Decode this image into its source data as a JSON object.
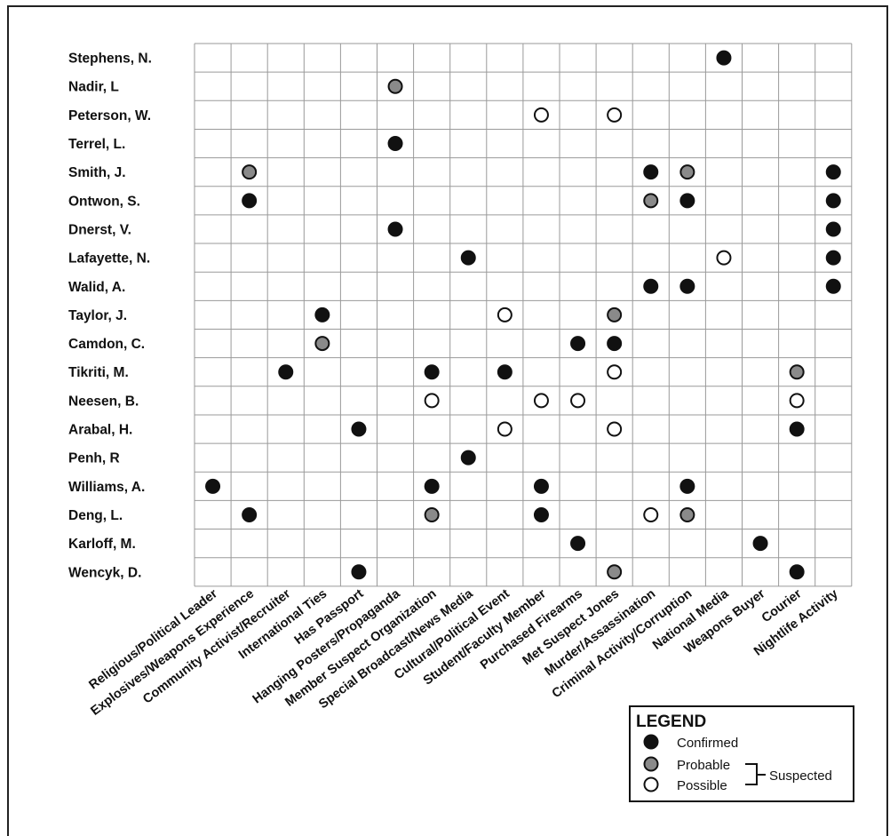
{
  "chart_data": {
    "type": "table",
    "rows": [
      "Stephens, N.",
      "Nadir, L",
      "Peterson, W.",
      "Terrel, L.",
      "Smith, J.",
      "Ontwon, S.",
      "Dnerst, V.",
      "Lafayette, N.",
      "Walid, A.",
      "Taylor, J.",
      "Camdon, C.",
      "Tikriti, M.",
      "Neesen, B.",
      "Arabal, H.",
      "Penh, R",
      "Williams, A.",
      "Deng, L.",
      "Karloff, M.",
      "Wencyk, D."
    ],
    "columns": [
      "Religious/Political Leader",
      "Explosives/Weapons Experience",
      "Community Activist/Recruiter",
      "International Ties",
      "Has Passport",
      "Hanging Posters/Propaganda",
      "Member Suspect Organization",
      "Special Broadcast/News Media",
      "Cultural/Political Event",
      "Student/Faculty Member",
      "Purchased Firearms",
      "Met Suspect Jones",
      "Murder/Assassination",
      "Criminal Activity/Corruption",
      "National Media",
      "Weapons Buyer",
      "Courier",
      "Nightlife Activity"
    ],
    "marks": [
      {
        "row": "Stephens, N.",
        "column": "National Media",
        "status": "confirmed"
      },
      {
        "row": "Nadir, L",
        "column": "Hanging Posters/Propaganda",
        "status": "probable"
      },
      {
        "row": "Peterson, W.",
        "column": "Student/Faculty Member",
        "status": "possible"
      },
      {
        "row": "Peterson, W.",
        "column": "Met Suspect Jones",
        "status": "possible"
      },
      {
        "row": "Terrel, L.",
        "column": "Hanging Posters/Propaganda",
        "status": "confirmed"
      },
      {
        "row": "Smith, J.",
        "column": "Explosives/Weapons Experience",
        "status": "probable"
      },
      {
        "row": "Smith, J.",
        "column": "Murder/Assassination",
        "status": "confirmed"
      },
      {
        "row": "Smith, J.",
        "column": "Criminal Activity/Corruption",
        "status": "probable"
      },
      {
        "row": "Smith, J.",
        "column": "Nightlife Activity",
        "status": "confirmed"
      },
      {
        "row": "Ontwon, S.",
        "column": "Explosives/Weapons Experience",
        "status": "confirmed"
      },
      {
        "row": "Ontwon, S.",
        "column": "Murder/Assassination",
        "status": "probable"
      },
      {
        "row": "Ontwon, S.",
        "column": "Criminal Activity/Corruption",
        "status": "confirmed"
      },
      {
        "row": "Ontwon, S.",
        "column": "Nightlife Activity",
        "status": "confirmed"
      },
      {
        "row": "Dnerst, V.",
        "column": "Hanging Posters/Propaganda",
        "status": "confirmed"
      },
      {
        "row": "Dnerst, V.",
        "column": "Nightlife Activity",
        "status": "confirmed"
      },
      {
        "row": "Lafayette, N.",
        "column": "Special Broadcast/News Media",
        "status": "confirmed"
      },
      {
        "row": "Lafayette, N.",
        "column": "National Media",
        "status": "possible"
      },
      {
        "row": "Lafayette, N.",
        "column": "Nightlife Activity",
        "status": "confirmed"
      },
      {
        "row": "Walid, A.",
        "column": "Murder/Assassination",
        "status": "confirmed"
      },
      {
        "row": "Walid, A.",
        "column": "Criminal Activity/Corruption",
        "status": "confirmed"
      },
      {
        "row": "Walid, A.",
        "column": "Nightlife Activity",
        "status": "confirmed"
      },
      {
        "row": "Taylor, J.",
        "column": "International Ties",
        "status": "confirmed"
      },
      {
        "row": "Taylor, J.",
        "column": "Cultural/Political Event",
        "status": "possible"
      },
      {
        "row": "Taylor, J.",
        "column": "Met Suspect Jones",
        "status": "probable"
      },
      {
        "row": "Camdon, C.",
        "column": "International Ties",
        "status": "probable"
      },
      {
        "row": "Camdon, C.",
        "column": "Purchased Firearms",
        "status": "confirmed"
      },
      {
        "row": "Camdon, C.",
        "column": "Met Suspect Jones",
        "status": "confirmed"
      },
      {
        "row": "Tikriti, M.",
        "column": "Community Activist/Recruiter",
        "status": "confirmed"
      },
      {
        "row": "Tikriti, M.",
        "column": "Member Suspect Organization",
        "status": "confirmed"
      },
      {
        "row": "Tikriti, M.",
        "column": "Cultural/Political Event",
        "status": "confirmed"
      },
      {
        "row": "Tikriti, M.",
        "column": "Met Suspect Jones",
        "status": "possible"
      },
      {
        "row": "Tikriti, M.",
        "column": "Courier",
        "status": "probable"
      },
      {
        "row": "Neesen, B.",
        "column": "Member Suspect Organization",
        "status": "possible"
      },
      {
        "row": "Neesen, B.",
        "column": "Student/Faculty Member",
        "status": "possible"
      },
      {
        "row": "Neesen, B.",
        "column": "Purchased Firearms",
        "status": "possible"
      },
      {
        "row": "Neesen, B.",
        "column": "Courier",
        "status": "possible"
      },
      {
        "row": "Arabal, H.",
        "column": "Has Passport",
        "status": "confirmed"
      },
      {
        "row": "Arabal, H.",
        "column": "Cultural/Political Event",
        "status": "possible"
      },
      {
        "row": "Arabal, H.",
        "column": "Met Suspect Jones",
        "status": "possible"
      },
      {
        "row": "Arabal, H.",
        "column": "Courier",
        "status": "confirmed"
      },
      {
        "row": "Penh, R",
        "column": "Special Broadcast/News Media",
        "status": "confirmed"
      },
      {
        "row": "Williams, A.",
        "column": "Religious/Political Leader",
        "status": "confirmed"
      },
      {
        "row": "Williams, A.",
        "column": "Member Suspect Organization",
        "status": "confirmed"
      },
      {
        "row": "Williams, A.",
        "column": "Student/Faculty Member",
        "status": "confirmed"
      },
      {
        "row": "Williams, A.",
        "column": "Criminal Activity/Corruption",
        "status": "confirmed"
      },
      {
        "row": "Deng, L.",
        "column": "Explosives/Weapons Experience",
        "status": "confirmed"
      },
      {
        "row": "Deng, L.",
        "column": "Member Suspect Organization",
        "status": "probable"
      },
      {
        "row": "Deng, L.",
        "column": "Student/Faculty Member",
        "status": "confirmed"
      },
      {
        "row": "Deng, L.",
        "column": "Murder/Assassination",
        "status": "possible"
      },
      {
        "row": "Deng, L.",
        "column": "Criminal Activity/Corruption",
        "status": "probable"
      },
      {
        "row": "Karloff, M.",
        "column": "Purchased Firearms",
        "status": "confirmed"
      },
      {
        "row": "Karloff, M.",
        "column": "Weapons Buyer",
        "status": "confirmed"
      },
      {
        "row": "Wencyk, D.",
        "column": "Has Passport",
        "status": "confirmed"
      },
      {
        "row": "Wencyk, D.",
        "column": "Met Suspect Jones",
        "status": "probable"
      },
      {
        "row": "Wencyk, D.",
        "column": "Courier",
        "status": "confirmed"
      }
    ],
    "legend": {
      "title": "LEGEND",
      "confirmed": "Confirmed",
      "probable": "Probable",
      "possible": "Possible",
      "group_label": "Suspected",
      "placement": "bottom-right"
    },
    "colors": {
      "confirmed": "#111111",
      "probable": "#8a8a8a",
      "possible": "#ffffff",
      "grid": "#9a9a9a"
    }
  }
}
